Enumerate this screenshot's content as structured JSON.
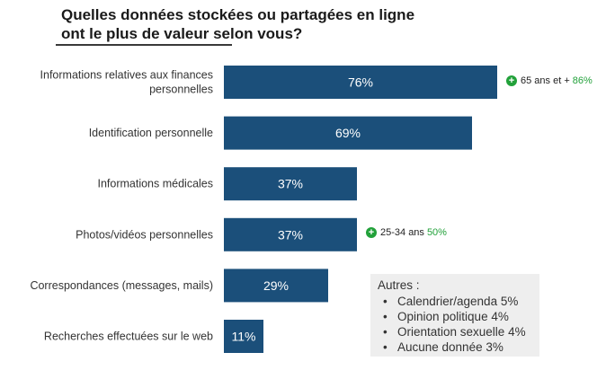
{
  "title": "Quelles données stockées ou partagées en ligne\nont le plus de valeur selon vous?",
  "colors": {
    "bar": "#1b4f7a",
    "accent_green": "#22a13a"
  },
  "chart_data": {
    "type": "bar",
    "orientation": "horizontal",
    "title": "Quelles données stockées ou partagées en ligne ont le plus de valeur selon vous?",
    "xlim": [
      0,
      100
    ],
    "grid": false,
    "categories": [
      [
        "Informations relatives aux finances",
        "personnelles"
      ],
      [
        "Identification personnelle"
      ],
      [
        "Informations médicales"
      ],
      [
        "Photos/vidéos personnelles"
      ],
      [
        "Correspondances (messages, mails)"
      ],
      [
        "Recherches effectuées sur le web"
      ]
    ],
    "values": [
      76,
      69,
      37,
      37,
      29,
      11
    ],
    "value_labels": [
      "76%",
      "69%",
      "37%",
      "37%",
      "29%",
      "11%"
    ]
  },
  "annotations": [
    {
      "category_index": 0,
      "icon": "plus-circle-icon",
      "text": "65 ans et +",
      "value": "86%"
    },
    {
      "category_index": 3,
      "icon": "plus-circle-icon",
      "text": "25-34 ans",
      "value": "50%"
    }
  ],
  "autres": {
    "heading": "Autres :",
    "items": [
      "Calendrier/agenda 5%",
      "Opinion politique 4%",
      "Orientation sexuelle 4%",
      "Aucune donnée 3%"
    ]
  }
}
